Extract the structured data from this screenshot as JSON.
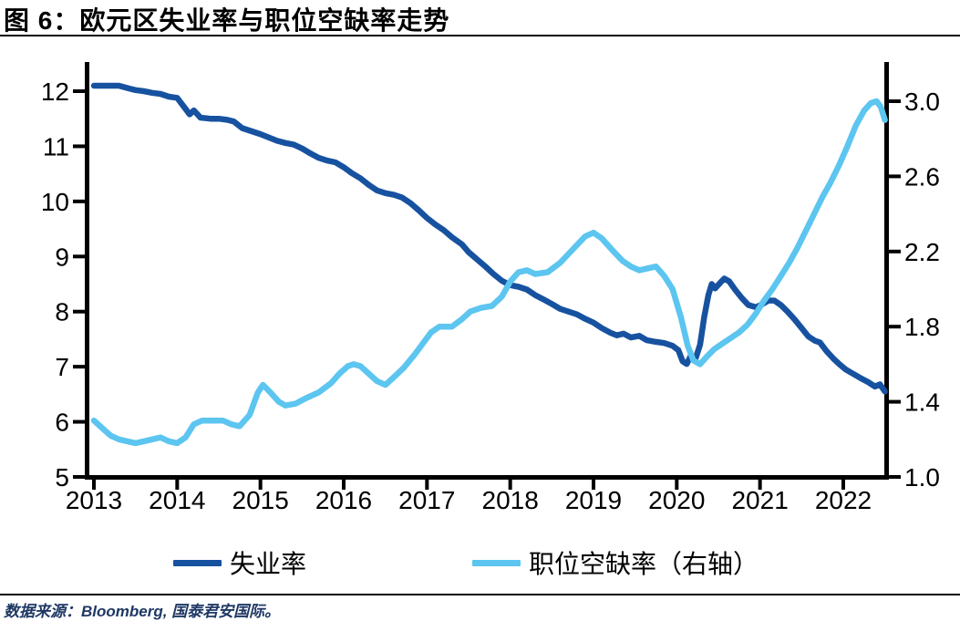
{
  "header": {
    "title": "图 6：欧元区失业率与职位空缺率走势"
  },
  "footer": {
    "source": "数据来源：Bloomberg, 国泰君安国际。"
  },
  "legend": {
    "items": [
      {
        "label": "失业率",
        "color": "#1752A0"
      },
      {
        "label": "职位空缺率（右轴）",
        "color": "#5CC5F0"
      }
    ]
  },
  "colors": {
    "unemployment_line": "#1752A0",
    "vacancy_line": "#5CC5F0",
    "axis": "#000000",
    "source_text": "#1F3864"
  },
  "chart_data": {
    "type": "line",
    "title": "欧元区失业率与职位空缺率走势",
    "grid": false,
    "legend_position": "bottom",
    "x_axis": {
      "ticks": [
        "2013",
        "2014",
        "2015",
        "2016",
        "2017",
        "2018",
        "2019",
        "2020",
        "2021",
        "2022"
      ],
      "range": [
        2013,
        2022.5
      ]
    },
    "y_axis_left": {
      "ticks": [
        12,
        11,
        10,
        9,
        8,
        7,
        6,
        5
      ],
      "range": [
        5,
        12
      ]
    },
    "y_axis_right": {
      "ticks": [
        "3.0",
        "2.6",
        "2.2",
        "1.8",
        "1.4",
        "1.0"
      ],
      "range": [
        1.0,
        3.0
      ]
    },
    "series": [
      {
        "name": "失业率",
        "id": "unemployment",
        "axis": "left",
        "color": "#1752A0",
        "points": [
          [
            2013.0,
            12.1
          ],
          [
            2013.1,
            12.1
          ],
          [
            2013.2,
            12.1
          ],
          [
            2013.3,
            12.1
          ],
          [
            2013.42,
            12.05
          ],
          [
            2013.5,
            12.02
          ],
          [
            2013.6,
            12.0
          ],
          [
            2013.7,
            11.97
          ],
          [
            2013.8,
            11.95
          ],
          [
            2013.9,
            11.9
          ],
          [
            2014.0,
            11.88
          ],
          [
            2014.08,
            11.72
          ],
          [
            2014.15,
            11.58
          ],
          [
            2014.2,
            11.65
          ],
          [
            2014.28,
            11.52
          ],
          [
            2014.4,
            11.5
          ],
          [
            2014.5,
            11.5
          ],
          [
            2014.6,
            11.48
          ],
          [
            2014.68,
            11.45
          ],
          [
            2014.78,
            11.33
          ],
          [
            2014.88,
            11.28
          ],
          [
            2015.0,
            11.22
          ],
          [
            2015.1,
            11.16
          ],
          [
            2015.2,
            11.1
          ],
          [
            2015.3,
            11.06
          ],
          [
            2015.4,
            11.03
          ],
          [
            2015.5,
            10.96
          ],
          [
            2015.6,
            10.87
          ],
          [
            2015.7,
            10.79
          ],
          [
            2015.8,
            10.74
          ],
          [
            2015.9,
            10.71
          ],
          [
            2016.0,
            10.62
          ],
          [
            2016.1,
            10.51
          ],
          [
            2016.2,
            10.42
          ],
          [
            2016.3,
            10.3
          ],
          [
            2016.4,
            10.2
          ],
          [
            2016.5,
            10.15
          ],
          [
            2016.6,
            10.12
          ],
          [
            2016.7,
            10.07
          ],
          [
            2016.8,
            9.97
          ],
          [
            2016.9,
            9.84
          ],
          [
            2017.0,
            9.7
          ],
          [
            2017.1,
            9.58
          ],
          [
            2017.2,
            9.48
          ],
          [
            2017.3,
            9.35
          ],
          [
            2017.42,
            9.22
          ],
          [
            2017.5,
            9.08
          ],
          [
            2017.6,
            8.95
          ],
          [
            2017.7,
            8.82
          ],
          [
            2017.8,
            8.68
          ],
          [
            2017.9,
            8.56
          ],
          [
            2018.0,
            8.48
          ],
          [
            2018.1,
            8.45
          ],
          [
            2018.2,
            8.4
          ],
          [
            2018.3,
            8.3
          ],
          [
            2018.4,
            8.22
          ],
          [
            2018.5,
            8.14
          ],
          [
            2018.6,
            8.05
          ],
          [
            2018.7,
            8.0
          ],
          [
            2018.8,
            7.95
          ],
          [
            2018.9,
            7.87
          ],
          [
            2019.0,
            7.8
          ],
          [
            2019.1,
            7.7
          ],
          [
            2019.2,
            7.62
          ],
          [
            2019.28,
            7.57
          ],
          [
            2019.36,
            7.6
          ],
          [
            2019.45,
            7.53
          ],
          [
            2019.55,
            7.56
          ],
          [
            2019.64,
            7.48
          ],
          [
            2019.75,
            7.45
          ],
          [
            2019.85,
            7.43
          ],
          [
            2019.95,
            7.38
          ],
          [
            2020.02,
            7.3
          ],
          [
            2020.07,
            7.1
          ],
          [
            2020.12,
            7.05
          ],
          [
            2020.17,
            7.2
          ],
          [
            2020.22,
            7.12
          ],
          [
            2020.28,
            7.4
          ],
          [
            2020.33,
            7.9
          ],
          [
            2020.38,
            8.3
          ],
          [
            2020.42,
            8.5
          ],
          [
            2020.46,
            8.42
          ],
          [
            2020.52,
            8.52
          ],
          [
            2020.57,
            8.6
          ],
          [
            2020.63,
            8.55
          ],
          [
            2020.7,
            8.4
          ],
          [
            2020.78,
            8.25
          ],
          [
            2020.86,
            8.12
          ],
          [
            2020.95,
            8.08
          ],
          [
            2021.02,
            8.13
          ],
          [
            2021.1,
            8.2
          ],
          [
            2021.17,
            8.2
          ],
          [
            2021.25,
            8.12
          ],
          [
            2021.33,
            8.0
          ],
          [
            2021.42,
            7.85
          ],
          [
            2021.5,
            7.7
          ],
          [
            2021.58,
            7.55
          ],
          [
            2021.66,
            7.47
          ],
          [
            2021.72,
            7.44
          ],
          [
            2021.8,
            7.28
          ],
          [
            2021.88,
            7.15
          ],
          [
            2021.95,
            7.05
          ],
          [
            2022.03,
            6.95
          ],
          [
            2022.12,
            6.87
          ],
          [
            2022.2,
            6.8
          ],
          [
            2022.3,
            6.72
          ],
          [
            2022.38,
            6.64
          ],
          [
            2022.44,
            6.68
          ],
          [
            2022.5,
            6.55
          ]
        ]
      },
      {
        "name": "职位空缺率（右轴）",
        "id": "vacancy",
        "axis": "right",
        "color": "#5CC5F0",
        "points": [
          [
            2013.0,
            1.3
          ],
          [
            2013.1,
            1.26
          ],
          [
            2013.2,
            1.22
          ],
          [
            2013.3,
            1.2
          ],
          [
            2013.4,
            1.19
          ],
          [
            2013.5,
            1.18
          ],
          [
            2013.6,
            1.19
          ],
          [
            2013.7,
            1.2
          ],
          [
            2013.8,
            1.21
          ],
          [
            2013.9,
            1.19
          ],
          [
            2014.0,
            1.18
          ],
          [
            2014.1,
            1.21
          ],
          [
            2014.2,
            1.28
          ],
          [
            2014.3,
            1.3
          ],
          [
            2014.42,
            1.3
          ],
          [
            2014.55,
            1.3
          ],
          [
            2014.65,
            1.28
          ],
          [
            2014.75,
            1.27
          ],
          [
            2014.87,
            1.33
          ],
          [
            2014.97,
            1.45
          ],
          [
            2015.03,
            1.49
          ],
          [
            2015.12,
            1.45
          ],
          [
            2015.22,
            1.4
          ],
          [
            2015.3,
            1.38
          ],
          [
            2015.42,
            1.39
          ],
          [
            2015.55,
            1.42
          ],
          [
            2015.7,
            1.45
          ],
          [
            2015.85,
            1.5
          ],
          [
            2015.95,
            1.55
          ],
          [
            2016.05,
            1.59
          ],
          [
            2016.12,
            1.6
          ],
          [
            2016.2,
            1.59
          ],
          [
            2016.3,
            1.55
          ],
          [
            2016.4,
            1.51
          ],
          [
            2016.5,
            1.49
          ],
          [
            2016.6,
            1.53
          ],
          [
            2016.72,
            1.58
          ],
          [
            2016.85,
            1.65
          ],
          [
            2016.95,
            1.71
          ],
          [
            2017.05,
            1.77
          ],
          [
            2017.15,
            1.8
          ],
          [
            2017.3,
            1.8
          ],
          [
            2017.42,
            1.84
          ],
          [
            2017.52,
            1.88
          ],
          [
            2017.65,
            1.9
          ],
          [
            2017.78,
            1.91
          ],
          [
            2017.9,
            1.96
          ],
          [
            2018.0,
            2.04
          ],
          [
            2018.1,
            2.09
          ],
          [
            2018.2,
            2.1
          ],
          [
            2018.3,
            2.08
          ],
          [
            2018.45,
            2.09
          ],
          [
            2018.6,
            2.14
          ],
          [
            2018.75,
            2.21
          ],
          [
            2018.9,
            2.28
          ],
          [
            2019.0,
            2.3
          ],
          [
            2019.1,
            2.27
          ],
          [
            2019.22,
            2.21
          ],
          [
            2019.35,
            2.15
          ],
          [
            2019.45,
            2.12
          ],
          [
            2019.55,
            2.1
          ],
          [
            2019.65,
            2.11
          ],
          [
            2019.75,
            2.12
          ],
          [
            2019.85,
            2.07
          ],
          [
            2019.95,
            2.0
          ],
          [
            2020.05,
            1.85
          ],
          [
            2020.13,
            1.7
          ],
          [
            2020.2,
            1.62
          ],
          [
            2020.28,
            1.6
          ],
          [
            2020.36,
            1.64
          ],
          [
            2020.45,
            1.68
          ],
          [
            2020.55,
            1.71
          ],
          [
            2020.65,
            1.74
          ],
          [
            2020.75,
            1.77
          ],
          [
            2020.85,
            1.81
          ],
          [
            2020.95,
            1.87
          ],
          [
            2021.05,
            1.94
          ],
          [
            2021.15,
            2.0
          ],
          [
            2021.25,
            2.07
          ],
          [
            2021.35,
            2.14
          ],
          [
            2021.45,
            2.22
          ],
          [
            2021.55,
            2.31
          ],
          [
            2021.65,
            2.4
          ],
          [
            2021.75,
            2.49
          ],
          [
            2021.85,
            2.57
          ],
          [
            2021.95,
            2.66
          ],
          [
            2022.05,
            2.76
          ],
          [
            2022.15,
            2.87
          ],
          [
            2022.25,
            2.95
          ],
          [
            2022.33,
            2.99
          ],
          [
            2022.4,
            3.0
          ],
          [
            2022.45,
            2.97
          ],
          [
            2022.5,
            2.9
          ]
        ]
      }
    ]
  }
}
